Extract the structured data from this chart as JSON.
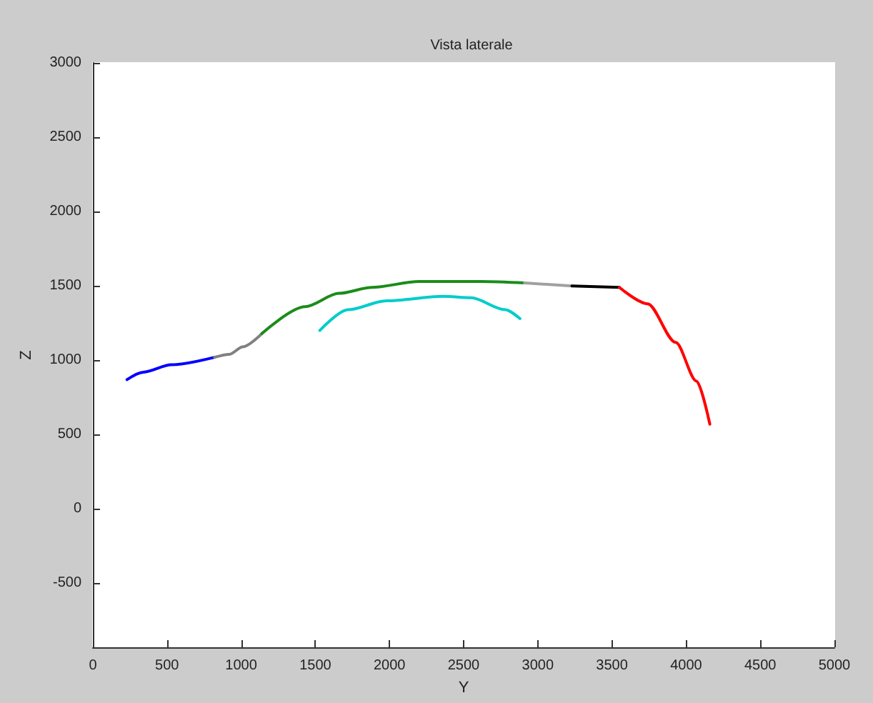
{
  "chart_data": {
    "type": "line",
    "title": "Vista laterale",
    "xlabel": "Y",
    "ylabel": "Z",
    "xlim": [
      0,
      5000
    ],
    "xticks": [
      0,
      500,
      1000,
      1500,
      2000,
      2500,
      3000,
      3500,
      4000,
      4500,
      5000
    ],
    "ylim": [
      -930,
      3000
    ],
    "yticks": [
      -500,
      0,
      500,
      1000,
      1500,
      2000,
      2500,
      3000
    ],
    "grid": false,
    "marker": "none",
    "line_style": "solid",
    "series": [
      {
        "color": "#0000ff",
        "x": [
          230,
          340,
          530,
          820
        ],
        "values": [
          870,
          920,
          970,
          1020
        ]
      },
      {
        "color": "#808080",
        "x": [
          820,
          920,
          1010,
          1140
        ],
        "values": [
          1020,
          1040,
          1090,
          1180
        ]
      },
      {
        "color": "#1a8c1a",
        "x": [
          1140,
          1430,
          1660,
          1880,
          2200,
          2620,
          2910
        ],
        "values": [
          1180,
          1360,
          1450,
          1490,
          1530,
          1530,
          1520
        ]
      },
      {
        "color": "#a0a0a0",
        "x": [
          2910,
          3230
        ],
        "values": [
          1520,
          1500
        ]
      },
      {
        "color": "#000000",
        "x": [
          3230,
          3550
        ],
        "values": [
          1500,
          1490
        ]
      },
      {
        "color": "#ff0000",
        "x": [
          3550,
          3740,
          3930,
          4070,
          4160
        ],
        "values": [
          1490,
          1380,
          1120,
          860,
          570
        ]
      },
      {
        "color": "#00cccc",
        "x": [
          1530,
          1720,
          1980,
          2360,
          2550,
          2780,
          2880
        ],
        "values": [
          1200,
          1340,
          1400,
          1430,
          1420,
          1340,
          1280
        ]
      }
    ]
  }
}
